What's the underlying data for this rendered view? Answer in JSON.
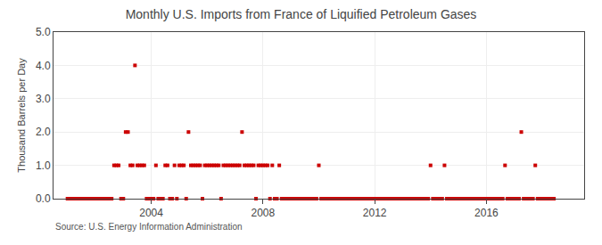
{
  "chart_data": {
    "type": "scatter",
    "title": "Monthly U.S. Imports from France of Liquified Petroleum Gases",
    "ylabel": "Thousand Barrels per Day",
    "annotations": [
      "Source: U.S. Energy Information Administration"
    ],
    "color": "#cc0000",
    "marker": "square",
    "grid": true,
    "xlim": [
      2000.5,
      2019.5
    ],
    "xticks": [
      2004,
      2008,
      2012,
      2016
    ],
    "ylim": [
      0,
      5.0
    ],
    "yticks": [
      {
        "value": 0.0,
        "label": "0.0"
      },
      {
        "value": 1.0,
        "label": "1.0"
      },
      {
        "value": 2.0,
        "label": "2.0"
      },
      {
        "value": 3.0,
        "label": "3.0"
      },
      {
        "value": 4.0,
        "label": "4.0"
      },
      {
        "value": 5.0,
        "label": "5.0"
      }
    ],
    "x": [
      2001.0,
      2001.083,
      2001.167,
      2001.25,
      2001.333,
      2001.417,
      2001.5,
      2001.583,
      2001.667,
      2001.75,
      2001.833,
      2001.917,
      2002.0,
      2002.083,
      2002.167,
      2002.25,
      2002.333,
      2002.417,
      2002.5,
      2002.583,
      2002.667,
      2002.75,
      2002.833,
      2002.917,
      2003.0,
      2003.083,
      2003.167,
      2003.25,
      2003.333,
      2003.417,
      2003.5,
      2003.583,
      2003.667,
      2003.75,
      2003.833,
      2003.917,
      2004.0,
      2004.083,
      2004.167,
      2004.25,
      2004.333,
      2004.417,
      2004.5,
      2004.583,
      2004.667,
      2004.75,
      2004.833,
      2004.917,
      2005.0,
      2005.083,
      2005.167,
      2005.25,
      2005.333,
      2005.417,
      2005.5,
      2005.583,
      2005.667,
      2005.75,
      2005.833,
      2005.917,
      2006.0,
      2006.083,
      2006.167,
      2006.25,
      2006.333,
      2006.417,
      2006.5,
      2006.583,
      2006.667,
      2006.75,
      2006.833,
      2006.917,
      2007.0,
      2007.083,
      2007.167,
      2007.25,
      2007.333,
      2007.417,
      2007.5,
      2007.583,
      2007.667,
      2007.75,
      2007.833,
      2007.917,
      2008.0,
      2008.083,
      2008.167,
      2008.25,
      2008.333,
      2008.417,
      2008.5,
      2008.583,
      2008.667,
      2008.75,
      2008.833,
      2008.917,
      2009.0,
      2009.083,
      2009.167,
      2009.25,
      2009.333,
      2009.417,
      2009.5,
      2009.583,
      2009.667,
      2009.75,
      2009.833,
      2009.917,
      2010.0,
      2010.083,
      2010.167,
      2010.25,
      2010.333,
      2010.417,
      2010.5,
      2010.583,
      2010.667,
      2010.75,
      2010.833,
      2010.917,
      2011.0,
      2011.083,
      2011.167,
      2011.25,
      2011.333,
      2011.417,
      2011.5,
      2011.583,
      2011.667,
      2011.75,
      2011.833,
      2011.917,
      2012.0,
      2012.083,
      2012.167,
      2012.25,
      2012.333,
      2012.417,
      2012.5,
      2012.583,
      2012.667,
      2012.75,
      2012.833,
      2012.917,
      2013.0,
      2013.083,
      2013.167,
      2013.25,
      2013.333,
      2013.417,
      2013.5,
      2013.583,
      2013.667,
      2013.75,
      2013.833,
      2013.917,
      2014.0,
      2014.083,
      2014.167,
      2014.25,
      2014.333,
      2014.417,
      2014.5,
      2014.583,
      2014.667,
      2014.75,
      2014.833,
      2014.917,
      2015.0,
      2015.083,
      2015.167,
      2015.25,
      2015.333,
      2015.417,
      2015.5,
      2015.583,
      2015.667,
      2015.75,
      2015.833,
      2015.917,
      2016.0,
      2016.083,
      2016.167,
      2016.25,
      2016.333,
      2016.417,
      2016.5,
      2016.583,
      2016.667,
      2016.75,
      2016.833,
      2016.917,
      2017.0,
      2017.083,
      2017.167,
      2017.25,
      2017.333,
      2017.417,
      2017.5,
      2017.583,
      2017.667,
      2017.75,
      2017.833,
      2017.917,
      2018.0,
      2018.083,
      2018.167,
      2018.25,
      2018.333,
      2018.417
    ],
    "values": [
      0.0,
      0.0,
      0.0,
      0.0,
      0.0,
      0.0,
      0.0,
      0.0,
      0.0,
      0.0,
      0.0,
      0.0,
      0.0,
      0.0,
      0.0,
      0.0,
      0.0,
      0.0,
      0.0,
      0.0,
      1.0,
      1.0,
      1.0,
      0.0,
      0.0,
      2.0,
      2.0,
      1.0,
      1.0,
      4.0,
      1.0,
      1.0,
      1.0,
      1.0,
      0.0,
      0.0,
      0.0,
      0.0,
      1.0,
      0.0,
      0.0,
      0.0,
      1.0,
      1.0,
      0.0,
      0.0,
      1.0,
      0.0,
      1.0,
      1.0,
      1.0,
      0.0,
      2.0,
      1.0,
      1.0,
      1.0,
      1.0,
      1.0,
      0.0,
      1.0,
      1.0,
      1.0,
      1.0,
      1.0,
      1.0,
      1.0,
      0.0,
      1.0,
      1.0,
      1.0,
      1.0,
      1.0,
      1.0,
      1.0,
      1.0,
      2.0,
      1.0,
      1.0,
      1.0,
      1.0,
      1.0,
      0.0,
      1.0,
      1.0,
      1.0,
      1.0,
      1.0,
      0.0,
      1.0,
      0.0,
      0.0,
      1.0,
      0.0,
      0.0,
      0.0,
      0.0,
      0.0,
      0.0,
      0.0,
      0.0,
      0.0,
      0.0,
      0.0,
      0.0,
      0.0,
      0.0,
      0.0,
      0.0,
      1.0,
      0.0,
      0.0,
      0.0,
      0.0,
      0.0,
      0.0,
      0.0,
      0.0,
      0.0,
      0.0,
      0.0,
      0.0,
      0.0,
      0.0,
      0.0,
      0.0,
      0.0,
      0.0,
      0.0,
      0.0,
      0.0,
      0.0,
      0.0,
      0.0,
      0.0,
      0.0,
      0.0,
      0.0,
      0.0,
      0.0,
      0.0,
      0.0,
      0.0,
      0.0,
      0.0,
      0.0,
      0.0,
      0.0,
      0.0,
      0.0,
      0.0,
      0.0,
      0.0,
      0.0,
      0.0,
      0.0,
      0.0,
      1.0,
      0.0,
      0.0,
      0.0,
      0.0,
      0.0,
      1.0,
      0.0,
      0.0,
      0.0,
      0.0,
      0.0,
      0.0,
      0.0,
      0.0,
      0.0,
      0.0,
      0.0,
      0.0,
      0.0,
      0.0,
      0.0,
      0.0,
      0.0,
      0.0,
      0.0,
      0.0,
      0.0,
      0.0,
      0.0,
      0.0,
      0.0,
      1.0,
      0.0,
      0.0,
      0.0,
      0.0,
      0.0,
      0.0,
      2.0,
      0.0,
      0.0,
      0.0,
      0.0,
      0.0,
      1.0,
      0.0,
      0.0,
      0.0,
      0.0,
      0.0,
      0.0,
      0.0,
      0.0
    ]
  }
}
